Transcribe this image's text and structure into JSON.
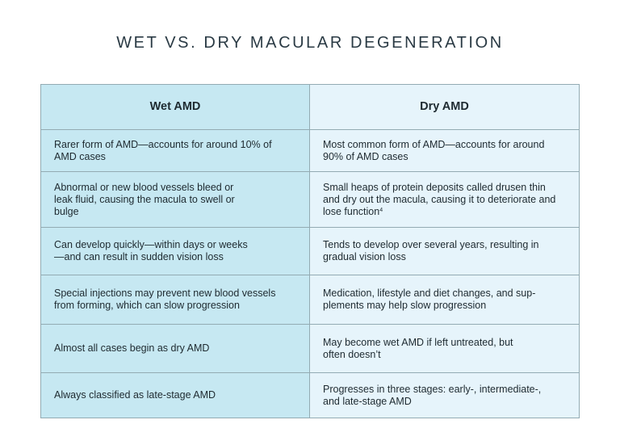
{
  "title": "WET VS. DRY MACULAR DEGENERATION",
  "columns": {
    "wet": "Wet AMD",
    "dry": "Dry AMD"
  },
  "colors": {
    "wet_bg": "#c6e8f2",
    "dry_bg": "#e6f4fb",
    "border": "#93abb3"
  },
  "rows": [
    {
      "wet": "Rarer form of AMD—accounts for around 10% of AMD cases",
      "dry": "Most common form of AMD—accounts for around 90% of AMD cases",
      "dry_sup": ""
    },
    {
      "wet": "Abnormal or new blood vessels bleed or leak fluid, causing the macula to swell or bulge",
      "dry": "Small heaps of protein deposits called drusen thin and dry out the macula, causing it to deteriorate and lose function",
      "dry_sup": "4"
    },
    {
      "wet": "Can develop quickly—within days or weeks—and can result in sudden vision loss",
      "dry": "Tends to develop over several years, resulting in gradual vision loss",
      "dry_sup": ""
    },
    {
      "wet": "Special injections may prevent new blood vessels from forming, which can slow progression",
      "dry": "Medication, lifestyle and diet changes, and sup-plements may help slow progression",
      "dry_sup": ""
    },
    {
      "wet": "Almost all cases begin as dry AMD",
      "dry": "May become wet AMD if left untreated, but often doesn’t",
      "dry_sup": ""
    },
    {
      "wet": "Always classified as late-stage AMD",
      "dry": "Progresses in three stages: early-, intermediate-, and late-stage AMD",
      "dry_sup": ""
    }
  ]
}
